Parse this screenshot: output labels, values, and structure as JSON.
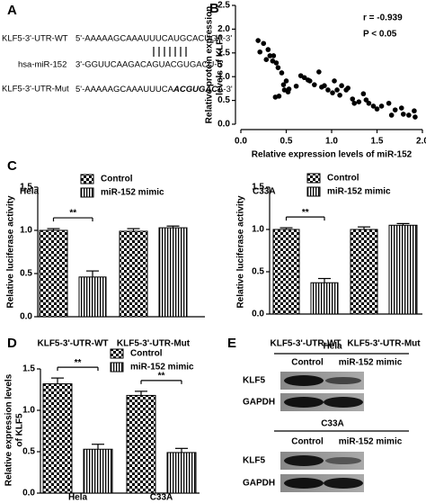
{
  "panel_labels": [
    "A",
    "B",
    "C",
    "D",
    "E"
  ],
  "panel_a": {
    "wt_name": "KLF5-3'-UTR-WT",
    "wt_seq": "5'-AAAAAGCAAAUUUCAUGCACUGA-3'",
    "mir_name": "hsa-miR-152",
    "mir_seq": "3'-GGUUCAAGACAGUACGUGACU-5'",
    "mut_name": "KLF5-3'-UTR-Mut",
    "mut_seq": [
      "5'-AAAAAGCAAAUUUCA",
      "ACGUGAC",
      "A-3'"
    ]
  },
  "chart_data": [
    {
      "type": "scatter",
      "xlabel": "Relative expression levels of miR-152",
      "ylabel_lines": [
        "Relative protein expression",
        "levels of KLF5"
      ],
      "annotations": [
        "r = -0.939",
        "P < 0.05"
      ],
      "color": "#000000",
      "x": [
        0.19,
        0.25,
        0.3,
        0.21,
        0.32,
        0.35,
        0.39,
        0.36,
        0.28,
        0.41,
        0.45,
        0.47,
        0.5,
        0.53,
        0.48,
        0.42,
        0.38,
        0.52,
        0.61,
        0.66,
        0.7,
        0.74,
        0.76,
        0.81,
        0.86,
        0.89,
        0.92,
        0.96,
        1.01,
        1.03,
        1.06,
        1.09,
        1.11,
        1.16,
        1.18,
        1.23,
        1.25,
        1.3,
        1.35,
        1.38,
        1.41,
        1.46,
        1.5,
        1.55,
        1.63,
        1.66,
        1.7,
        1.77,
        1.79,
        1.85,
        1.91,
        1.92
      ],
      "values": [
        1.76,
        1.7,
        1.57,
        1.52,
        1.44,
        1.33,
        1.29,
        1.44,
        1.36,
        1.19,
        1.08,
        0.83,
        0.91,
        0.74,
        0.72,
        0.59,
        0.57,
        0.68,
        0.8,
        1.02,
        0.98,
        0.93,
        0.91,
        0.83,
        1.1,
        0.78,
        0.81,
        0.72,
        0.66,
        0.91,
        0.72,
        0.61,
        0.81,
        0.72,
        0.76,
        0.53,
        0.44,
        0.47,
        0.64,
        0.51,
        0.44,
        0.38,
        0.32,
        0.38,
        0.44,
        0.19,
        0.3,
        0.34,
        0.21,
        0.19,
        0.28,
        0.15
      ],
      "xlim": [
        0,
        2
      ],
      "xticks": [
        {
          "value": 0,
          "label": "0.0"
        },
        0.5,
        {
          "value": 1,
          "label": "1.0"
        },
        1.5,
        {
          "value": 2,
          "label": "2.0"
        }
      ],
      "ylim": [
        0,
        2.5
      ],
      "yticks": [
        {
          "value": 0,
          "label": "0.0"
        },
        0.5,
        {
          "value": 1,
          "label": "1.0"
        },
        1.5,
        {
          "value": 2,
          "label": "2.0"
        },
        2.5
      ]
    },
    {
      "type": "bar",
      "title": "Hela",
      "ylabel": "Relative luciferase activity",
      "categories": [
        "KLF5-3'-UTR-WT",
        "KLF5-3'-UTR-Mut"
      ],
      "significance": [
        "**",
        null
      ],
      "series": [
        {
          "name": "Control",
          "pattern": "checker",
          "color": "#000000",
          "values": [
            1.0,
            0.99
          ],
          "errors": [
            0.02,
            0.03
          ]
        },
        {
          "name": "miR-152 mimic",
          "pattern": "vstripe",
          "color": "#000000",
          "values": [
            0.46,
            1.03
          ],
          "errors": [
            0.07,
            0.02
          ]
        }
      ],
      "ylim": [
        0,
        1.5
      ],
      "yticks": [
        {
          "value": 0,
          "label": "0.0"
        },
        0.5,
        {
          "value": 1,
          "label": "1.0"
        },
        1.5
      ]
    },
    {
      "type": "bar",
      "title": "C33A",
      "ylabel": "Relative luciferase activity",
      "categories": [
        "KLF5-3'-UTR-WT",
        "KLF5-3'-UTR-Mut"
      ],
      "significance": [
        "**",
        null
      ],
      "series": [
        {
          "name": "Control",
          "pattern": "checker",
          "color": "#000000",
          "values": [
            1.0,
            1.0
          ],
          "errors": [
            0.02,
            0.03
          ]
        },
        {
          "name": "miR-152 mimic",
          "pattern": "vstripe",
          "color": "#000000",
          "values": [
            0.37,
            1.05
          ],
          "errors": [
            0.05,
            0.02
          ]
        }
      ],
      "ylim": [
        0,
        1.5
      ],
      "yticks": [
        {
          "value": 0,
          "label": "0.0"
        },
        0.5,
        {
          "value": 1,
          "label": "1.0"
        },
        1.5
      ]
    },
    {
      "type": "bar",
      "ylabel_lines": [
        "Relative expression levels",
        "of KLF5"
      ],
      "categories": [
        "Hela",
        "C33A"
      ],
      "significance": [
        "**",
        "**"
      ],
      "series": [
        {
          "name": "Control",
          "pattern": "checker",
          "color": "#000000",
          "values": [
            1.32,
            1.18
          ],
          "errors": [
            0.07,
            0.05
          ]
        },
        {
          "name": "miR-152 mimic",
          "pattern": "vstripe",
          "color": "#000000",
          "values": [
            0.53,
            0.49
          ],
          "errors": [
            0.06,
            0.05
          ]
        }
      ],
      "ylim": [
        0,
        1.5
      ],
      "yticks": [
        {
          "value": 0,
          "label": "0.0"
        },
        0.5,
        {
          "value": 1,
          "label": "1.0"
        },
        1.5
      ]
    }
  ],
  "panel_e": {
    "blots": [
      {
        "title": "Hela",
        "lanes": [
          "Control",
          "miR-152 mimic"
        ],
        "rows": [
          "KLF5",
          "GAPDH"
        ]
      },
      {
        "title": "C33A",
        "lanes": [
          "Control",
          "miR-152 mimic"
        ],
        "rows": [
          "KLF5",
          "GAPDH"
        ]
      }
    ]
  }
}
